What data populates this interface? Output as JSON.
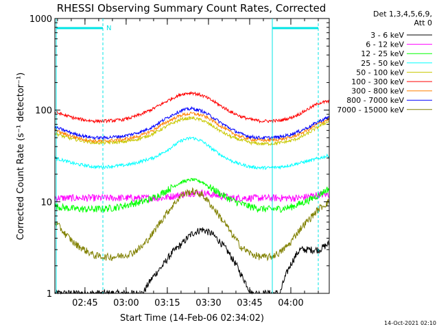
{
  "chart_data": {
    "type": "line",
    "title": "RHESSI Observing Summary Count Rates, Corrected",
    "xlabel": "Start Time (14-Feb-06 02:34:02)",
    "ylabel": "Corrected Count Rate (s⁻¹ detector⁻¹)",
    "x_range": [
      "02:34:02",
      "04:14:00"
    ],
    "x_ticks": [
      "02:45",
      "03:00",
      "03:15",
      "03:30",
      "03:45",
      "04:00"
    ],
    "y_scale": "log",
    "ylim": [
      1,
      1000
    ],
    "y_ticks": [
      "1",
      "10",
      "100",
      "1000"
    ],
    "legend_header": [
      "Det 1,3,4,5,6,9,",
      "Att 0"
    ],
    "legend_placement": "right",
    "timestamp": "14-Oct-2021 02:10",
    "flag_label": "N",
    "series": [
      {
        "name": "3 - 6 keV",
        "color": "#000000",
        "values": [
          1,
          1,
          1,
          1,
          1,
          1,
          1,
          1,
          1,
          1,
          1.5,
          2,
          2.8,
          3.5,
          4.5,
          5,
          4.5,
          3.5,
          2.5,
          1.6,
          1,
          1,
          1,
          1,
          2,
          3,
          3,
          3,
          3.5
        ]
      },
      {
        "name": "6 - 12 keV",
        "color": "#ff00ff",
        "values": [
          11,
          11,
          11,
          11,
          11,
          11,
          11,
          11,
          11,
          11,
          11,
          11,
          11.5,
          12,
          12.5,
          12.5,
          12,
          11.5,
          11,
          11,
          11,
          11,
          11,
          11,
          11,
          11,
          11.5,
          12,
          12
        ]
      },
      {
        "name": "12 - 25 keV",
        "color": "#00ff00",
        "values": [
          9,
          8.6,
          8.4,
          8.3,
          8.3,
          8.4,
          8.6,
          9,
          9.6,
          10,
          11,
          12.5,
          14.5,
          16.5,
          17.5,
          16.5,
          14,
          12,
          10.5,
          9.5,
          8.8,
          8.4,
          8.3,
          8.4,
          8.7,
          9.5,
          10.5,
          12,
          14
        ]
      },
      {
        "name": "25 - 50 keV",
        "color": "#00ffff",
        "values": [
          30,
          28,
          26,
          25,
          24,
          24,
          24.5,
          25,
          26,
          28,
          30,
          34,
          40,
          47,
          50,
          46,
          38,
          32,
          28,
          25.5,
          24,
          23.5,
          23.5,
          24,
          25,
          26.5,
          28,
          30,
          32
        ]
      },
      {
        "name": "50 - 100 keV",
        "color": "#c8c800",
        "values": [
          56,
          51,
          48,
          46,
          44,
          44,
          44.5,
          45,
          47,
          50,
          55,
          63,
          72,
          80,
          82,
          78,
          68,
          58,
          51,
          47,
          44,
          43,
          43,
          44,
          46,
          50,
          57,
          67,
          76
        ]
      },
      {
        "name": "100 - 300 keV",
        "color": "#ff0000",
        "values": [
          95,
          88,
          82,
          78,
          76,
          76,
          77,
          79,
          84,
          92,
          103,
          118,
          135,
          150,
          155,
          145,
          128,
          110,
          95,
          85,
          79,
          76,
          76,
          77,
          82,
          91,
          105,
          120,
          125
        ]
      },
      {
        "name": "300 - 800 keV",
        "color": "#ff8000",
        "values": [
          60,
          55,
          51,
          48,
          46,
          46,
          47,
          48,
          50,
          54,
          60,
          70,
          80,
          89,
          92,
          88,
          78,
          66,
          57,
          51,
          48,
          47,
          47,
          48,
          50,
          55,
          62,
          72,
          80
        ]
      },
      {
        "name": "800 - 7000 keV",
        "color": "#0000ff",
        "values": [
          65,
          60,
          55,
          52,
          50,
          50,
          51,
          52,
          55,
          59,
          66,
          77,
          89,
          100,
          104,
          98,
          85,
          72,
          62,
          55,
          51,
          50,
          50,
          51,
          54,
          59,
          66,
          76,
          84
        ]
      },
      {
        "name": "7000 - 15000 keV",
        "color": "#808000",
        "values": [
          6,
          4.5,
          3.5,
          3,
          2.6,
          2.5,
          2.5,
          2.6,
          2.8,
          3.3,
          4.5,
          6.5,
          9,
          12,
          13,
          12,
          9,
          6.5,
          4.5,
          3.2,
          2.7,
          2.5,
          2.5,
          2.8,
          3.5,
          5,
          6.5,
          8.5,
          10
        ]
      }
    ]
  }
}
